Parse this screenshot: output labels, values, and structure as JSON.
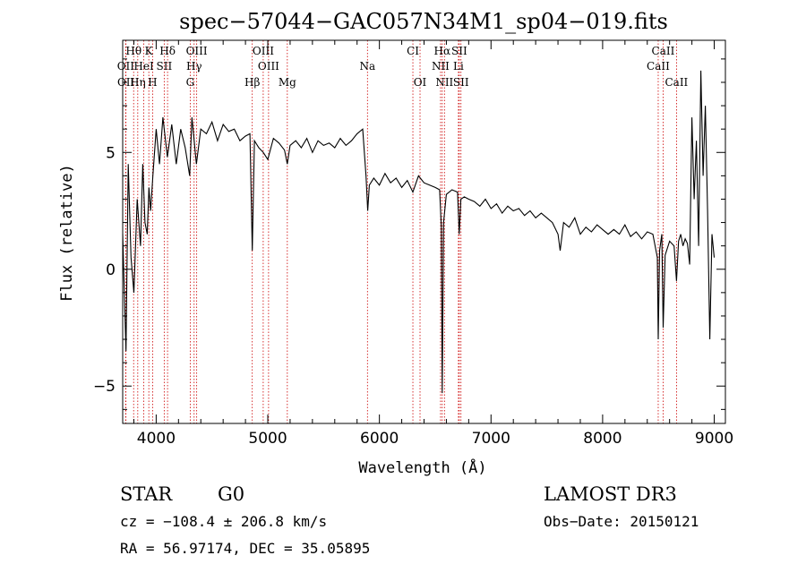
{
  "chart_data": {
    "type": "line",
    "title": "spec−57044−GAC057N34M1_sp04−019.fits",
    "xlabel": "Wavelength (Å)",
    "ylabel": "Flux (relative)",
    "xlim": [
      3700,
      9100
    ],
    "ylim": [
      -6.6,
      9.8
    ],
    "xticks": [
      4000,
      5000,
      6000,
      7000,
      8000,
      9000
    ],
    "xtick_labels": [
      "4000",
      "5000",
      "6000",
      "7000",
      "8000",
      "9000"
    ],
    "yticks": [
      -5,
      0,
      5
    ],
    "ytick_labels": [
      "−5",
      "0",
      "5"
    ],
    "grid": false,
    "spectral_lines": [
      {
        "label": "Hθ",
        "wavelength": 3798,
        "row": 0
      },
      {
        "label": "K",
        "wavelength": 3934,
        "row": 0
      },
      {
        "label": "Hδ",
        "wavelength": 4102,
        "row": 0
      },
      {
        "label": "OIII",
        "wavelength": 4363,
        "row": 0
      },
      {
        "label": "OIII",
        "wavelength": 4959,
        "row": 0
      },
      {
        "label": "CI",
        "wavelength": 6300,
        "row": 0
      },
      {
        "label": "Hα",
        "wavelength": 6563,
        "row": 0
      },
      {
        "label": "SII",
        "wavelength": 6716,
        "row": 0
      },
      {
        "label": "CaII",
        "wavelength": 8542,
        "row": 0
      },
      {
        "label": "OII",
        "wavelength": 3727,
        "row": 1
      },
      {
        "label": "HeI",
        "wavelength": 3889,
        "row": 1
      },
      {
        "label": "SII",
        "wavelength": 4072,
        "row": 1
      },
      {
        "label": "Hγ",
        "wavelength": 4340,
        "row": 1
      },
      {
        "label": "OIII",
        "wavelength": 5007,
        "row": 1
      },
      {
        "label": "Na",
        "wavelength": 5893,
        "row": 1
      },
      {
        "label": "NII",
        "wavelength": 6548,
        "row": 1
      },
      {
        "label": "Li",
        "wavelength": 6708,
        "row": 1
      },
      {
        "label": "CaII",
        "wavelength": 8498,
        "row": 1
      },
      {
        "label": "OII",
        "wavelength": 3729,
        "row": 2
      },
      {
        "label": "Hη",
        "wavelength": 3835,
        "row": 2
      },
      {
        "label": "H",
        "wavelength": 3968,
        "row": 2
      },
      {
        "label": "G",
        "wavelength": 4305,
        "row": 2
      },
      {
        "label": "Hβ",
        "wavelength": 4861,
        "row": 2
      },
      {
        "label": "Mg",
        "wavelength": 5175,
        "row": 2
      },
      {
        "label": "OI",
        "wavelength": 6364,
        "row": 2
      },
      {
        "label": "NII",
        "wavelength": 6583,
        "row": 2
      },
      {
        "label": "SII",
        "wavelength": 6731,
        "row": 2
      },
      {
        "label": "CaII",
        "wavelength": 8662,
        "row": 2
      }
    ],
    "series": [
      {
        "name": "flux",
        "x": [
          3700,
          3730,
          3750,
          3775,
          3800,
          3830,
          3860,
          3880,
          3900,
          3920,
          3935,
          3950,
          3970,
          4000,
          4030,
          4060,
          4100,
          4140,
          4180,
          4220,
          4260,
          4300,
          4320,
          4340,
          4360,
          4400,
          4450,
          4500,
          4550,
          4600,
          4650,
          4700,
          4750,
          4800,
          4840,
          4861,
          4880,
          4920,
          4960,
          5000,
          5050,
          5100,
          5150,
          5175,
          5200,
          5250,
          5300,
          5350,
          5400,
          5450,
          5500,
          5550,
          5600,
          5650,
          5700,
          5750,
          5800,
          5850,
          5880,
          5895,
          5910,
          5950,
          6000,
          6050,
          6100,
          6150,
          6200,
          6250,
          6300,
          6350,
          6400,
          6450,
          6500,
          6540,
          6555,
          6563,
          6575,
          6600,
          6650,
          6700,
          6715,
          6730,
          6760,
          6800,
          6850,
          6900,
          6950,
          7000,
          7050,
          7100,
          7150,
          7200,
          7250,
          7300,
          7350,
          7400,
          7450,
          7500,
          7550,
          7600,
          7620,
          7650,
          7700,
          7750,
          7800,
          7850,
          7900,
          7950,
          8000,
          8050,
          8100,
          8150,
          8200,
          8250,
          8300,
          8350,
          8400,
          8450,
          8490,
          8498,
          8510,
          8530,
          8542,
          8560,
          8600,
          8640,
          8662,
          8680,
          8700,
          8720,
          8740,
          8760,
          8780,
          8800,
          8820,
          8840,
          8860,
          8880,
          8900,
          8920,
          8940,
          8960,
          8980,
          9000
        ],
        "y": [
          1.5,
          -3.5,
          4.5,
          0.5,
          -1.0,
          3.0,
          1.0,
          4.5,
          2.0,
          1.5,
          3.5,
          2.5,
          4.0,
          6.0,
          4.5,
          6.5,
          4.8,
          6.2,
          4.5,
          6.0,
          5.2,
          4.0,
          6.5,
          5.5,
          4.5,
          6.0,
          5.8,
          6.3,
          5.5,
          6.2,
          5.9,
          6.0,
          5.5,
          5.7,
          5.8,
          0.8,
          5.5,
          5.2,
          5.0,
          4.7,
          5.6,
          5.4,
          5.1,
          4.5,
          5.3,
          5.5,
          5.2,
          5.6,
          5.0,
          5.5,
          5.3,
          5.4,
          5.2,
          5.6,
          5.3,
          5.5,
          5.8,
          6.0,
          4.0,
          2.5,
          3.6,
          3.9,
          3.6,
          4.1,
          3.7,
          3.9,
          3.5,
          3.8,
          3.3,
          4.0,
          3.7,
          3.6,
          3.5,
          3.4,
          1.8,
          -5.3,
          2.0,
          3.2,
          3.4,
          3.3,
          1.5,
          3.0,
          3.1,
          3.0,
          2.9,
          2.7,
          3.0,
          2.6,
          2.8,
          2.4,
          2.7,
          2.5,
          2.6,
          2.3,
          2.5,
          2.2,
          2.4,
          2.2,
          2.0,
          1.5,
          0.8,
          2.0,
          1.8,
          2.2,
          1.5,
          1.8,
          1.6,
          1.9,
          1.7,
          1.5,
          1.7,
          1.5,
          1.9,
          1.4,
          1.6,
          1.3,
          1.6,
          1.5,
          0.5,
          -3.0,
          0.8,
          1.5,
          -2.5,
          0.6,
          1.2,
          1.0,
          -0.5,
          1.2,
          1.5,
          1.0,
          1.3,
          1.1,
          0.2,
          6.5,
          3.0,
          5.5,
          1.0,
          8.5,
          4.0,
          7.0,
          2.5,
          -3.0,
          1.5,
          0.5
        ]
      }
    ]
  },
  "object_class": "STAR",
  "subclass": "G0",
  "survey": "LAMOST DR3",
  "redshift_line": "cz = −108.4 ± 206.8 km/s",
  "obs_date": "Obs−Date: 20150121",
  "coords_line": "RA =  56.97174, DEC =  35.05895"
}
